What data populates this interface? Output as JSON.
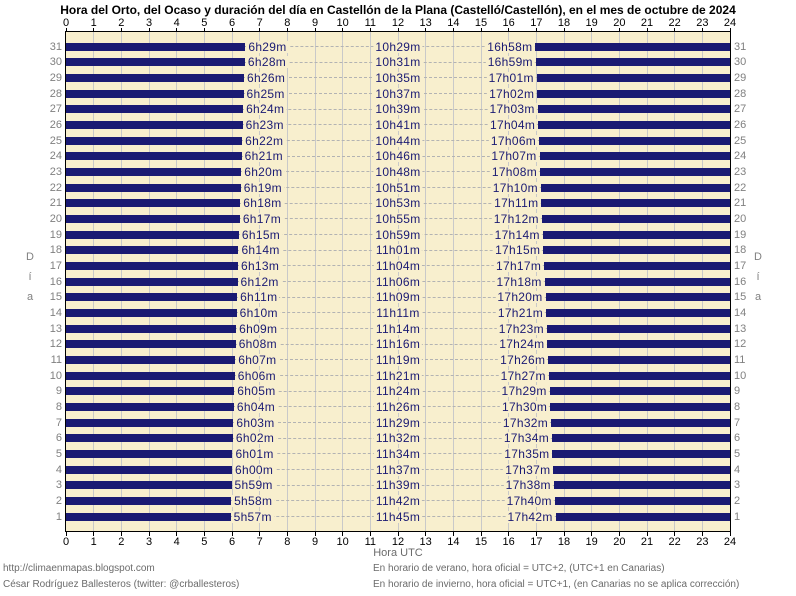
{
  "title": "Hora del Orto, del Ocaso y duración del día en Castellón de la Plana (Castelló/Castellón), en el mes de octubre de 2024",
  "axis": {
    "hours": [
      0,
      1,
      2,
      3,
      4,
      5,
      6,
      7,
      8,
      9,
      10,
      11,
      12,
      13,
      14,
      15,
      16,
      17,
      18,
      19,
      20,
      21,
      22,
      23,
      24
    ],
    "xlabel": "Hora UTC",
    "ylabel": "Día"
  },
  "colors": {
    "night": "#1a1a73",
    "day_bg": "#f8efce",
    "grid": "#c9c9c9",
    "dash": "#b3b3b3"
  },
  "footer": {
    "left1": "http://climaenmapas.blogspot.com",
    "left2": "César Rodríguez Ballesteros (twitter: @crballesteros)",
    "right1": "En horario de verano, hora oficial = UTC+2, (UTC+1 en Canarias)",
    "right2": "En horario de invierno, hora oficial = UTC+1, (en Canarias no se aplica corrección)"
  },
  "chart_data": {
    "type": "bar",
    "orientation": "horizontal-timeline",
    "title": "Hora del Orto, del Ocaso y duración del día en Castellón de la Plana (Castelló/Castellón), en el mes de octubre de 2024",
    "xlabel": "Hora UTC",
    "ylabel": "Día",
    "xlim": [
      0,
      24
    ],
    "x_ticks": [
      0,
      1,
      2,
      3,
      4,
      5,
      6,
      7,
      8,
      9,
      10,
      11,
      12,
      13,
      14,
      15,
      16,
      17,
      18,
      19,
      20,
      21,
      22,
      23,
      24
    ],
    "grid": true,
    "legend": "none",
    "note": "navy bars = night (00:00→orto and ocaso→24:00); cream band = daylight",
    "days_top_to_bottom": [
      {
        "day": 31,
        "orto": "6h29m",
        "duracion": "10h29m",
        "ocaso": "16h58m"
      },
      {
        "day": 30,
        "orto": "6h28m",
        "duracion": "10h31m",
        "ocaso": "16h59m"
      },
      {
        "day": 29,
        "orto": "6h26m",
        "duracion": "10h35m",
        "ocaso": "17h01m"
      },
      {
        "day": 28,
        "orto": "6h25m",
        "duracion": "10h37m",
        "ocaso": "17h02m"
      },
      {
        "day": 27,
        "orto": "6h24m",
        "duracion": "10h39m",
        "ocaso": "17h03m"
      },
      {
        "day": 26,
        "orto": "6h23m",
        "duracion": "10h41m",
        "ocaso": "17h04m"
      },
      {
        "day": 25,
        "orto": "6h22m",
        "duracion": "10h44m",
        "ocaso": "17h06m"
      },
      {
        "day": 24,
        "orto": "6h21m",
        "duracion": "10h46m",
        "ocaso": "17h07m"
      },
      {
        "day": 23,
        "orto": "6h20m",
        "duracion": "10h48m",
        "ocaso": "17h08m"
      },
      {
        "day": 22,
        "orto": "6h19m",
        "duracion": "10h51m",
        "ocaso": "17h10m"
      },
      {
        "day": 21,
        "orto": "6h18m",
        "duracion": "10h53m",
        "ocaso": "17h11m"
      },
      {
        "day": 20,
        "orto": "6h17m",
        "duracion": "10h55m",
        "ocaso": "17h12m"
      },
      {
        "day": 19,
        "orto": "6h15m",
        "duracion": "10h59m",
        "ocaso": "17h14m"
      },
      {
        "day": 18,
        "orto": "6h14m",
        "duracion": "11h01m",
        "ocaso": "17h15m"
      },
      {
        "day": 17,
        "orto": "6h13m",
        "duracion": "11h04m",
        "ocaso": "17h17m"
      },
      {
        "day": 16,
        "orto": "6h12m",
        "duracion": "11h06m",
        "ocaso": "17h18m"
      },
      {
        "day": 15,
        "orto": "6h11m",
        "duracion": "11h09m",
        "ocaso": "17h20m"
      },
      {
        "day": 14,
        "orto": "6h10m",
        "duracion": "11h11m",
        "ocaso": "17h21m"
      },
      {
        "day": 13,
        "orto": "6h09m",
        "duracion": "11h14m",
        "ocaso": "17h23m"
      },
      {
        "day": 12,
        "orto": "6h08m",
        "duracion": "11h16m",
        "ocaso": "17h24m"
      },
      {
        "day": 11,
        "orto": "6h07m",
        "duracion": "11h19m",
        "ocaso": "17h26m"
      },
      {
        "day": 10,
        "orto": "6h06m",
        "duracion": "11h21m",
        "ocaso": "17h27m"
      },
      {
        "day": 9,
        "orto": "6h05m",
        "duracion": "11h24m",
        "ocaso": "17h29m"
      },
      {
        "day": 8,
        "orto": "6h04m",
        "duracion": "11h26m",
        "ocaso": "17h30m"
      },
      {
        "day": 7,
        "orto": "6h03m",
        "duracion": "11h29m",
        "ocaso": "17h32m"
      },
      {
        "day": 6,
        "orto": "6h02m",
        "duracion": "11h32m",
        "ocaso": "17h34m"
      },
      {
        "day": 5,
        "orto": "6h01m",
        "duracion": "11h34m",
        "ocaso": "17h35m"
      },
      {
        "day": 4,
        "orto": "6h00m",
        "duracion": "11h37m",
        "ocaso": "17h37m"
      },
      {
        "day": 3,
        "orto": "5h59m",
        "duracion": "11h39m",
        "ocaso": "17h38m"
      },
      {
        "day": 2,
        "orto": "5h58m",
        "duracion": "11h42m",
        "ocaso": "17h40m"
      },
      {
        "day": 1,
        "orto": "5h57m",
        "duracion": "11h45m",
        "ocaso": "17h42m"
      }
    ]
  }
}
